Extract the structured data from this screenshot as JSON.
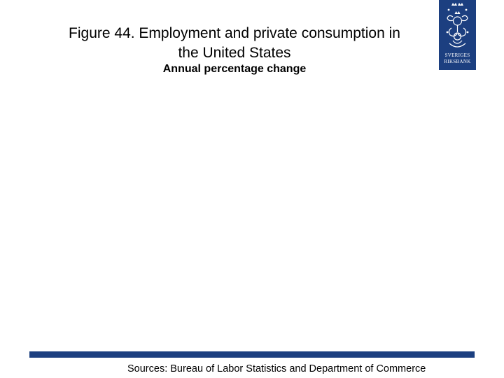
{
  "slide": {
    "title_line1": "Figure 44. Employment and private consumption in",
    "title_line2": "the United States",
    "subtitle": "Annual percentage change",
    "sources": "Sources: Bureau of Labor Statistics and Department of Commerce"
  },
  "logo": {
    "line1": "SVERIGES",
    "line2": "RIKSBANK",
    "icon": "riksbank-crest-icon",
    "color": "#1c3f80"
  },
  "footer_bar": {
    "color": "#1c3f80"
  }
}
